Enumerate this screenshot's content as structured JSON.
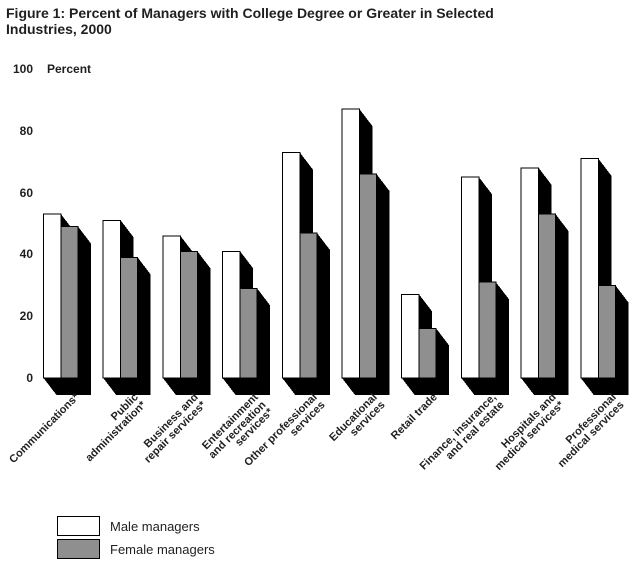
{
  "figure": {
    "title": "Figure 1: Percent of Managers with College Degree or Greater in Selected Industries, 2000",
    "title_lines": "Figure 1: Percent of Managers with College Degree or Greater in Selected\nIndustries, 2000"
  },
  "chart_data": {
    "type": "bar",
    "style": "3d-shadow-block-bars",
    "title": "Figure 1: Percent of Managers with College Degree or Greater in Selected Industries, 2000",
    "xlabel": "",
    "ylabel": "Percent",
    "ylim": [
      0,
      100
    ],
    "yticks": [
      0,
      20,
      40,
      60,
      80,
      100
    ],
    "grid": false,
    "axis_lines": false,
    "legend_position": "bottom-left",
    "categories": [
      "Communications*",
      "Public administration*",
      "Business and repair services*",
      "Entertainment and recreation services*",
      "Other professional services",
      "Educational services",
      "Retail trade",
      "Finance, insurance, and real estate",
      "Hospitals and medical services*",
      "Professional medical services"
    ],
    "category_display_lines": [
      "Communications*",
      "Public\nadministration*",
      "Business and\nrepair services*",
      "Entertainment\nand recreation\nservices*",
      "Other professional\nservices",
      "Educational\nservices",
      "Retail trade",
      "Finance, insurance,\nand real estate",
      "Hospitals and\nmedical services*",
      "Professional\nmedical services"
    ],
    "series": [
      {
        "name": "Male managers",
        "color": "#ffffff",
        "values": [
          53,
          51,
          46,
          41,
          73,
          87,
          27,
          65,
          68,
          71
        ]
      },
      {
        "name": "Female managers",
        "color": "#8f8f8f",
        "values": [
          49,
          39,
          41,
          29,
          47,
          66,
          16,
          31,
          53,
          30
        ]
      }
    ],
    "shadow_color": "#000000",
    "bar_outline_color": "#000000"
  },
  "legend": {
    "items": [
      {
        "label": "Male managers",
        "color": "#ffffff"
      },
      {
        "label": "Female managers",
        "color": "#8f8f8f"
      }
    ]
  }
}
